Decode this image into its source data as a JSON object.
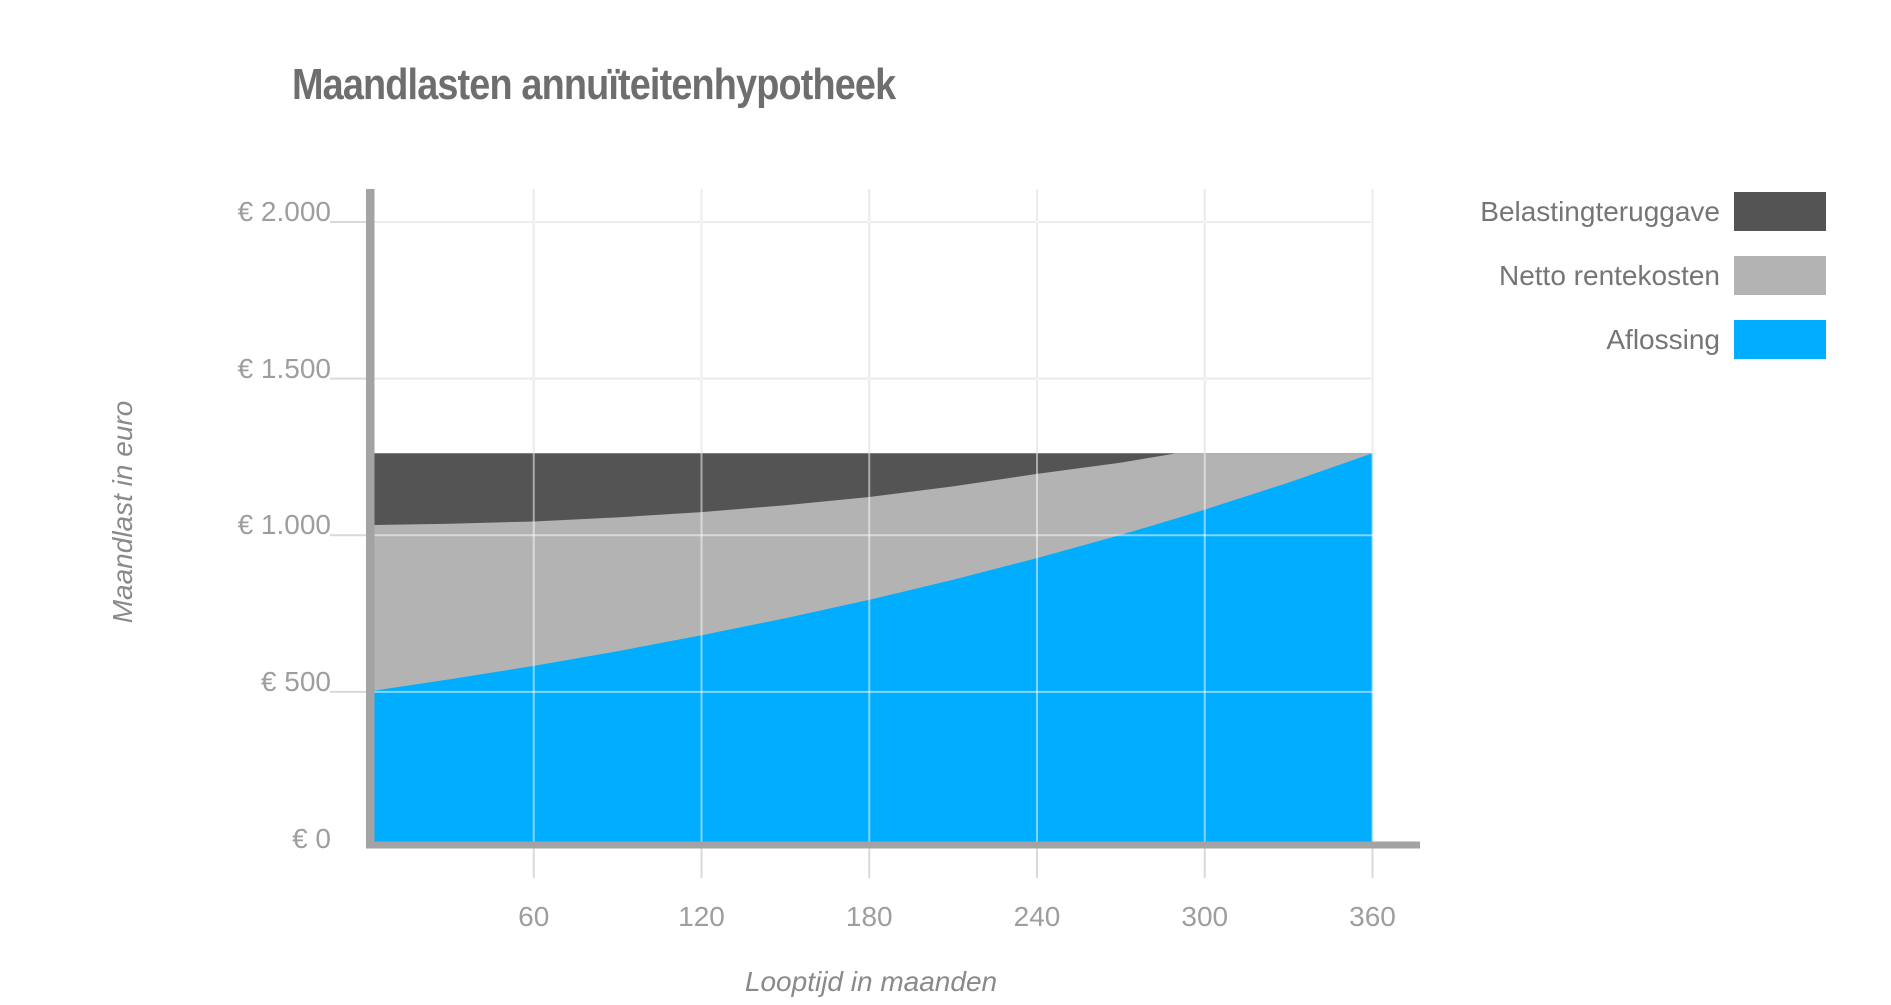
{
  "title": "Maandlasten annuïteitenhypotheek",
  "legend": [
    {
      "label": "Belastingteruggave",
      "color": "#545454"
    },
    {
      "label": "Netto rentekosten",
      "color": "#b3b3b3"
    },
    {
      "label": "Aflossing",
      "color": "#00ADFF"
    }
  ],
  "colors": {
    "grid": "#d9d9d9",
    "axis_bar": "#a3a3a3",
    "tick_text": "#9e9e9e",
    "title_text": "#6e6e6e"
  },
  "chart_data": {
    "type": "area",
    "stacked": true,
    "title": "Maandlasten annuïteitenhypotheek",
    "xlabel": "Looptijd in maanden",
    "ylabel": "Maandlast in euro",
    "x": [
      0,
      30,
      60,
      90,
      120,
      150,
      180,
      210,
      240,
      270,
      290,
      300,
      330,
      360
    ],
    "series": [
      {
        "name": "Aflossing",
        "color": "#00ADFF",
        "values": [
          500,
          540,
          583,
          630,
          681,
          735,
          794,
          858,
          927,
          1001,
          1054,
          1082,
          1168,
          1262
        ]
      },
      {
        "name": "Netto rentekosten",
        "color": "#b3b3b3",
        "values": [
          532,
          497,
          461,
          427,
          393,
          361,
          328,
          298,
          269,
          231,
          208,
          180,
          94,
          0
        ]
      },
      {
        "name": "Belastingteruggave",
        "color": "#545454",
        "values": [
          230,
          225,
          218,
          205,
          188,
          166,
          140,
          106,
          66,
          30,
          0,
          0,
          0,
          0
        ]
      }
    ],
    "total_monthly_payment": 1262,
    "xticks": [
      60,
      120,
      180,
      240,
      300,
      360
    ],
    "yticks": [
      {
        "value": 0,
        "label": "€ 0"
      },
      {
        "value": 500,
        "label": "€ 500"
      },
      {
        "value": 1000,
        "label": "€ 1.000"
      },
      {
        "value": 1500,
        "label": "€ 1.500"
      },
      {
        "value": 2000,
        "label": "€ 2.000"
      }
    ],
    "xlim": [
      0,
      360
    ],
    "ylim": [
      0,
      2100
    ],
    "grid": true,
    "legend_position": "top-right"
  }
}
